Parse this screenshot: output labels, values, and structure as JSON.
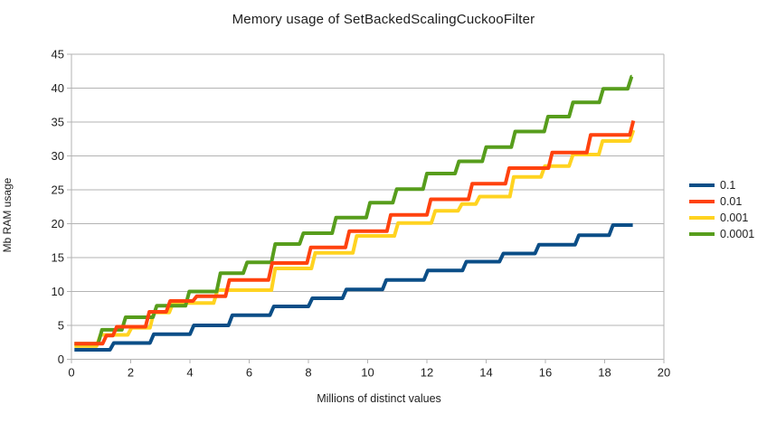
{
  "chart_data": {
    "type": "line",
    "line_style": "step-staircase",
    "title": "Memory usage of SetBackedScalingCuckooFilter",
    "xlabel": "Millions of distinct values",
    "ylabel": "Mb RAM usage",
    "xlim": [
      0,
      20
    ],
    "ylim": [
      0,
      45
    ],
    "x_ticks": [
      0,
      2,
      4,
      6,
      8,
      10,
      12,
      14,
      16,
      18,
      20
    ],
    "y_ticks": [
      0,
      5,
      10,
      15,
      20,
      25,
      30,
      35,
      40,
      45
    ],
    "grid": "horizontal-only",
    "grid_color": "#b3b3b3",
    "axis_text_color": "#1e1e1e",
    "legend_position": "right",
    "legend_labels": [
      "0.1",
      "0.01",
      "0.001",
      "0.0001"
    ],
    "series": [
      {
        "name": "0.1",
        "color": "#0b4e87",
        "points": [
          [
            0.1,
            1.4
          ],
          [
            1.3,
            1.4
          ],
          [
            1.43,
            2.4
          ],
          [
            2.65,
            2.4
          ],
          [
            2.78,
            3.7
          ],
          [
            4.0,
            3.7
          ],
          [
            4.13,
            5.0
          ],
          [
            5.3,
            5.0
          ],
          [
            5.43,
            6.5
          ],
          [
            6.7,
            6.5
          ],
          [
            6.83,
            7.8
          ],
          [
            8.0,
            7.8
          ],
          [
            8.13,
            9.0
          ],
          [
            9.15,
            9.0
          ],
          [
            9.28,
            10.3
          ],
          [
            10.5,
            10.3
          ],
          [
            10.63,
            11.7
          ],
          [
            11.9,
            11.7
          ],
          [
            12.03,
            13.1
          ],
          [
            13.2,
            13.1
          ],
          [
            13.33,
            14.4
          ],
          [
            14.45,
            14.4
          ],
          [
            14.58,
            15.6
          ],
          [
            15.65,
            15.6
          ],
          [
            15.78,
            16.9
          ],
          [
            17.0,
            16.9
          ],
          [
            17.13,
            18.3
          ],
          [
            18.15,
            18.3
          ],
          [
            18.28,
            19.8
          ],
          [
            18.95,
            19.8
          ]
        ]
      },
      {
        "name": "0.001",
        "color": "#ffd320",
        "points": [
          [
            0.1,
            1.95
          ],
          [
            0.85,
            1.95
          ],
          [
            0.98,
            3.6
          ],
          [
            1.9,
            3.6
          ],
          [
            2.03,
            4.65
          ],
          [
            2.65,
            4.65
          ],
          [
            2.78,
            6.9
          ],
          [
            3.3,
            6.9
          ],
          [
            3.43,
            8.3
          ],
          [
            4.8,
            8.3
          ],
          [
            4.93,
            10.2
          ],
          [
            6.75,
            10.2
          ],
          [
            6.88,
            13.4
          ],
          [
            8.1,
            13.4
          ],
          [
            8.23,
            15.7
          ],
          [
            9.5,
            15.7
          ],
          [
            9.63,
            18.2
          ],
          [
            10.9,
            18.2
          ],
          [
            11.03,
            20.1
          ],
          [
            12.15,
            20.1
          ],
          [
            12.28,
            21.9
          ],
          [
            13.05,
            21.9
          ],
          [
            13.18,
            22.9
          ],
          [
            13.65,
            22.9
          ],
          [
            13.78,
            24.0
          ],
          [
            14.8,
            24.0
          ],
          [
            14.93,
            26.9
          ],
          [
            15.85,
            26.9
          ],
          [
            15.98,
            28.5
          ],
          [
            16.8,
            28.5
          ],
          [
            16.93,
            30.2
          ],
          [
            17.8,
            30.2
          ],
          [
            17.93,
            32.2
          ],
          [
            18.85,
            32.2
          ],
          [
            18.97,
            33.8
          ]
        ]
      },
      {
        "name": "0.0001",
        "color": "#579d1c",
        "points": [
          [
            0.1,
            2.3
          ],
          [
            0.9,
            2.3
          ],
          [
            1.03,
            4.35
          ],
          [
            1.7,
            4.35
          ],
          [
            1.83,
            6.2
          ],
          [
            2.75,
            6.2
          ],
          [
            2.88,
            7.9
          ],
          [
            3.85,
            7.9
          ],
          [
            3.98,
            10.0
          ],
          [
            4.9,
            10.0
          ],
          [
            5.03,
            12.7
          ],
          [
            5.8,
            12.7
          ],
          [
            5.93,
            14.3
          ],
          [
            6.75,
            14.3
          ],
          [
            6.88,
            17.0
          ],
          [
            7.7,
            17.0
          ],
          [
            7.83,
            18.6
          ],
          [
            8.8,
            18.6
          ],
          [
            8.93,
            20.9
          ],
          [
            9.95,
            20.9
          ],
          [
            10.08,
            23.1
          ],
          [
            10.85,
            23.1
          ],
          [
            10.98,
            25.1
          ],
          [
            11.87,
            25.1
          ],
          [
            12.0,
            27.4
          ],
          [
            12.95,
            27.4
          ],
          [
            13.08,
            29.2
          ],
          [
            13.87,
            29.2
          ],
          [
            14.0,
            31.3
          ],
          [
            14.85,
            31.3
          ],
          [
            14.98,
            33.6
          ],
          [
            15.96,
            33.6
          ],
          [
            16.09,
            35.8
          ],
          [
            16.8,
            35.8
          ],
          [
            16.93,
            37.9
          ],
          [
            17.82,
            37.9
          ],
          [
            17.95,
            39.9
          ],
          [
            18.78,
            39.9
          ],
          [
            18.91,
            41.7
          ],
          [
            18.92,
            41.7
          ]
        ]
      },
      {
        "name": "0.01",
        "color": "#ff420e",
        "points": [
          [
            0.1,
            2.3
          ],
          [
            1.05,
            2.3
          ],
          [
            1.18,
            3.5
          ],
          [
            1.4,
            3.5
          ],
          [
            1.53,
            4.8
          ],
          [
            2.5,
            4.8
          ],
          [
            2.63,
            7.0
          ],
          [
            3.2,
            7.0
          ],
          [
            3.33,
            8.6
          ],
          [
            4.1,
            8.6
          ],
          [
            4.23,
            9.3
          ],
          [
            5.2,
            9.3
          ],
          [
            5.33,
            11.7
          ],
          [
            6.65,
            11.7
          ],
          [
            6.78,
            14.2
          ],
          [
            7.95,
            14.2
          ],
          [
            8.08,
            16.5
          ],
          [
            9.25,
            16.5
          ],
          [
            9.38,
            18.9
          ],
          [
            10.65,
            18.9
          ],
          [
            10.78,
            21.3
          ],
          [
            12.0,
            21.3
          ],
          [
            12.13,
            23.6
          ],
          [
            13.4,
            23.6
          ],
          [
            13.53,
            25.9
          ],
          [
            14.65,
            25.9
          ],
          [
            14.78,
            28.2
          ],
          [
            16.1,
            28.2
          ],
          [
            16.23,
            30.5
          ],
          [
            17.4,
            30.5
          ],
          [
            17.53,
            33.1
          ],
          [
            18.85,
            33.1
          ],
          [
            18.97,
            35.2
          ]
        ]
      }
    ]
  },
  "layout_note_legend_order": [
    "0.1",
    "0.01",
    "0.001",
    "0.0001"
  ]
}
